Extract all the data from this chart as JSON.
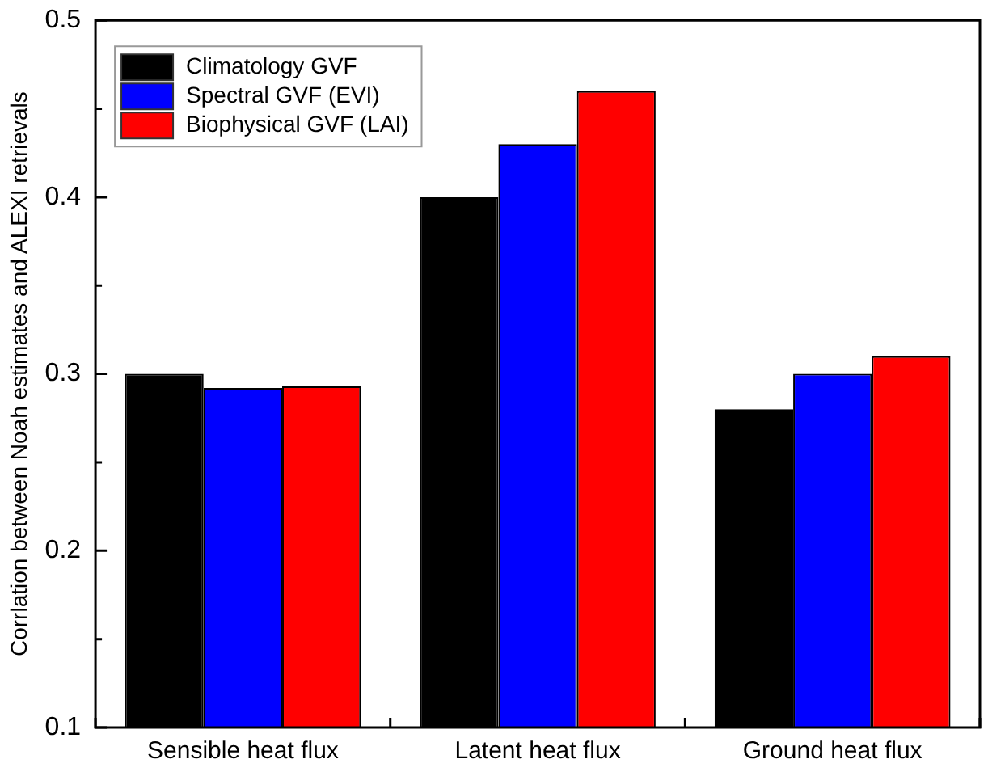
{
  "chart_data": {
    "type": "bar",
    "ylabel": "Corrlation between Noah estimates and ALEXI retrievals",
    "categories": [
      "Sensible heat flux",
      "Latent heat flux",
      "Ground heat flux"
    ],
    "series": [
      {
        "name": "Climatology GVF",
        "color": "#000000",
        "values": [
          0.3,
          0.4,
          0.28
        ]
      },
      {
        "name": "Spectral GVF (EVI)",
        "color": "#0000ff",
        "values": [
          0.292,
          0.43,
          0.3
        ]
      },
      {
        "name": "Biophysical GVF (LAI)",
        "color": "#ff0000",
        "values": [
          0.293,
          0.46,
          0.31
        ]
      }
    ],
    "ylim": [
      0.1,
      0.5
    ],
    "yticks": [
      0.1,
      {
        "value": 0.15,
        "label": null
      },
      0.2,
      {
        "value": 0.25,
        "label": null
      },
      0.3,
      {
        "value": 0.35,
        "label": null
      },
      0.4,
      {
        "value": 0.45,
        "label": null
      },
      0.5
    ],
    "grid": false,
    "legend": "top left"
  }
}
